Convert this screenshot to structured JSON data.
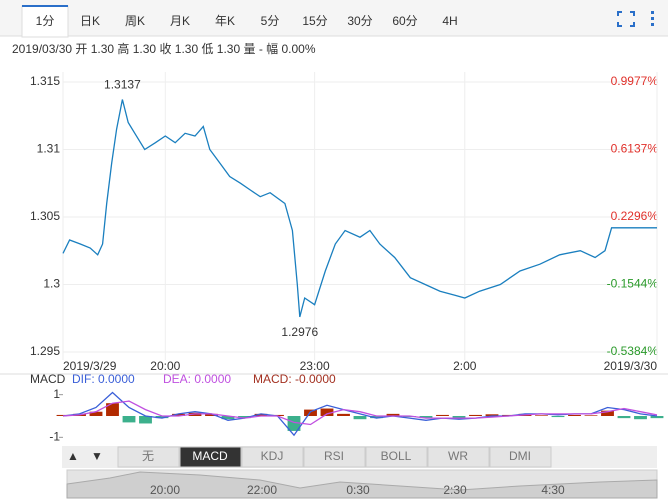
{
  "tabs": [
    "1分",
    "日K",
    "周K",
    "月K",
    "年K",
    "5分",
    "15分",
    "30分",
    "60分",
    "4H"
  ],
  "active_tab": 0,
  "info": "2019/03/30 开 1.30 高 1.30 收 1.30 低 1.30 量 - 幅 0.00%",
  "chart_data": [
    {
      "type": "line",
      "x": [
        0,
        8,
        21,
        33,
        42,
        48,
        53,
        59,
        65,
        72,
        79,
        87,
        99,
        112,
        124,
        136,
        148,
        160,
        170,
        178,
        190,
        202,
        215,
        227,
        239,
        251,
        269,
        278,
        284,
        287,
        293,
        305,
        318,
        330,
        342,
        360,
        372,
        384,
        402,
        421,
        439,
        457,
        475,
        487,
        505,
        530,
        554,
        578,
        602,
        627,
        645,
        657,
        665,
        687,
        720
      ],
      "values": [
        1.3023,
        1.3033,
        1.303,
        1.3027,
        1.3022,
        1.303,
        1.306,
        1.309,
        1.3115,
        1.3137,
        1.312,
        1.3112,
        1.31,
        1.3105,
        1.311,
        1.3105,
        1.3112,
        1.311,
        1.3117,
        1.31,
        1.309,
        1.308,
        1.3075,
        1.307,
        1.3065,
        1.3068,
        1.306,
        1.304,
        1.3,
        1.2976,
        1.299,
        1.2985,
        1.301,
        1.303,
        1.304,
        1.3035,
        1.304,
        1.303,
        1.302,
        1.3005,
        1.3,
        1.2995,
        1.2992,
        1.299,
        1.2995,
        1.3,
        1.301,
        1.3015,
        1.3022,
        1.3025,
        1.302,
        1.3025,
        1.3042,
        1.3042,
        1.3042
      ],
      "color": "#1a7fbf",
      "xlim": [
        0,
        720
      ],
      "xticks": [
        {
          "value": 0,
          "label": "2019/3/29"
        },
        {
          "value": 124,
          "label": "20:00"
        },
        {
          "value": 305,
          "label": "23:00"
        },
        {
          "value": 487,
          "label": "2:00"
        },
        {
          "value": 720,
          "label": "2019/3/30"
        }
      ],
      "ylim": [
        1.295,
        1.315
      ],
      "yticks": [
        {
          "value": 1.295,
          "label": "1.295"
        },
        {
          "value": 1.3,
          "label": "1.3"
        },
        {
          "value": 1.305,
          "label": "1.305"
        },
        {
          "value": 1.31,
          "label": "1.31"
        },
        {
          "value": 1.315,
          "label": "1.315"
        }
      ],
      "y2lim": [
        -0.5384,
        0.9977
      ],
      "y2ticks": [
        {
          "value": -0.5384,
          "label": "-0.5384%"
        },
        {
          "value": -0.1544,
          "label": "-0.1544%"
        },
        {
          "value": 0.2296,
          "label": "0.2296%"
        },
        {
          "value": 0.6137,
          "label": "0.6137%"
        },
        {
          "value": 0.9977,
          "label": "0.9977%"
        }
      ],
      "y2colors": {
        "up": "#e0302a",
        "down": "#2a9a2a"
      },
      "grid": true,
      "annotations": [
        {
          "x": 72,
          "y": 1.3137,
          "text": "1.3137",
          "position": "above"
        },
        {
          "x": 287,
          "y": 1.2976,
          "text": "1.2976",
          "position": "below"
        }
      ]
    },
    {
      "type": "macd",
      "title": "MACD",
      "x": [
        0,
        20,
        40,
        60,
        80,
        100,
        120,
        140,
        160,
        180,
        200,
        220,
        240,
        260,
        280,
        300,
        320,
        340,
        360,
        380,
        400,
        420,
        440,
        460,
        480,
        500,
        520,
        540,
        560,
        580,
        600,
        620,
        640,
        660,
        680,
        700,
        720
      ],
      "series": [
        {
          "label": "DIF: 0.0000",
          "color": "#3a5fd8",
          "values": [
            0,
            0.1,
            0.4,
            1.1,
            0.4,
            0,
            -0.1,
            0.1,
            0.2,
            0.1,
            -0.2,
            -0.1,
            0.1,
            0,
            -0.9,
            0.2,
            0.5,
            0.3,
            0.1,
            -0.1,
            0,
            -0.1,
            -0.2,
            -0.1,
            -0.15,
            -0.1,
            0,
            0,
            0.1,
            0.1,
            0.05,
            0.1,
            0.1,
            0.4,
            0.3,
            0.1,
            0
          ]
        },
        {
          "label": "DEA: 0.0000",
          "color": "#c050e0",
          "values": [
            0,
            0.05,
            0.2,
            0.6,
            0.7,
            0.3,
            0,
            0,
            0.1,
            0.1,
            0,
            -0.1,
            0,
            0,
            -0.3,
            -0.4,
            0.1,
            0.3,
            0.2,
            0,
            0,
            0,
            -0.1,
            -0.1,
            -0.1,
            -0.1,
            -0.05,
            0,
            0.05,
            0.1,
            0.1,
            0.1,
            0.1,
            0.2,
            0.35,
            0.2,
            0.05
          ]
        },
        {
          "label": "MACD: -0.0000",
          "color": "#a33020",
          "type": "histogram",
          "values": [
            0.05,
            0.1,
            0.2,
            0.6,
            -0.3,
            -0.35,
            -0.1,
            0.1,
            0.15,
            0.1,
            -0.15,
            -0.1,
            0.1,
            0.05,
            -0.7,
            0.3,
            0.35,
            0.1,
            -0.15,
            -0.1,
            0.1,
            -0.05,
            -0.1,
            0.05,
            -0.1,
            0.05,
            0.08,
            0.05,
            0.1,
            0.03,
            -0.05,
            0.05,
            0.03,
            0.25,
            -0.1,
            -0.15,
            -0.1
          ]
        }
      ],
      "hist_colors": {
        "up": "#b22a00",
        "down": "#3cb08c"
      },
      "xlim": [
        0,
        720
      ],
      "ylim": [
        -1.5,
        1.5
      ],
      "yticks": [
        -1,
        1
      ]
    }
  ],
  "arrows": [
    "▲",
    "▼"
  ],
  "indicators": [
    "无",
    "MACD",
    "KDJ",
    "RSI",
    "BOLL",
    "WR",
    "DMI"
  ],
  "active_indicator": 1,
  "navigator": {
    "labels": [
      "20:00",
      "22:00",
      "0:30",
      "2:30",
      "4:30"
    ]
  }
}
